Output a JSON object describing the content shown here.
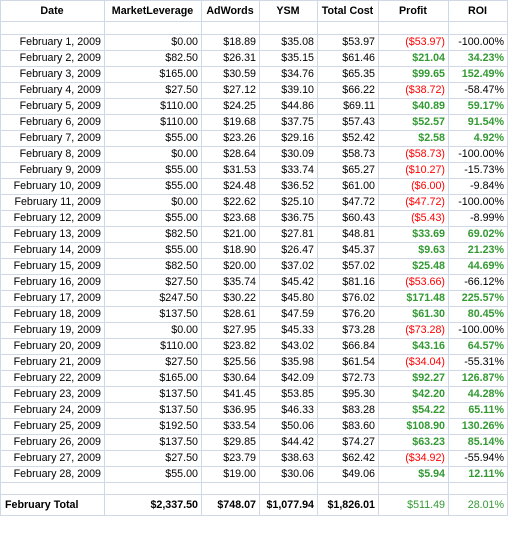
{
  "columns": [
    "Date",
    "MarketLeverage",
    "AdWords",
    "YSM",
    "Total Cost",
    "Profit",
    "ROI"
  ],
  "rows": [
    {
      "date": "February 1, 2009",
      "ml": "$0.00",
      "aw": "$18.89",
      "ysm": "$35.08",
      "tc": "$53.97",
      "profit": "($53.97)",
      "roi": "-100.00%",
      "sign": "neg"
    },
    {
      "date": "February 2, 2009",
      "ml": "$82.50",
      "aw": "$26.31",
      "ysm": "$35.15",
      "tc": "$61.46",
      "profit": "$21.04",
      "roi": "34.23%",
      "sign": "pos"
    },
    {
      "date": "February 3, 2009",
      "ml": "$165.00",
      "aw": "$30.59",
      "ysm": "$34.76",
      "tc": "$65.35",
      "profit": "$99.65",
      "roi": "152.49%",
      "sign": "pos"
    },
    {
      "date": "February 4, 2009",
      "ml": "$27.50",
      "aw": "$27.12",
      "ysm": "$39.10",
      "tc": "$66.22",
      "profit": "($38.72)",
      "roi": "-58.47%",
      "sign": "neg"
    },
    {
      "date": "February 5, 2009",
      "ml": "$110.00",
      "aw": "$24.25",
      "ysm": "$44.86",
      "tc": "$69.11",
      "profit": "$40.89",
      "roi": "59.17%",
      "sign": "pos"
    },
    {
      "date": "February 6, 2009",
      "ml": "$110.00",
      "aw": "$19.68",
      "ysm": "$37.75",
      "tc": "$57.43",
      "profit": "$52.57",
      "roi": "91.54%",
      "sign": "pos"
    },
    {
      "date": "February 7, 2009",
      "ml": "$55.00",
      "aw": "$23.26",
      "ysm": "$29.16",
      "tc": "$52.42",
      "profit": "$2.58",
      "roi": "4.92%",
      "sign": "pos"
    },
    {
      "date": "February 8, 2009",
      "ml": "$0.00",
      "aw": "$28.64",
      "ysm": "$30.09",
      "tc": "$58.73",
      "profit": "($58.73)",
      "roi": "-100.00%",
      "sign": "neg"
    },
    {
      "date": "February 9, 2009",
      "ml": "$55.00",
      "aw": "$31.53",
      "ysm": "$33.74",
      "tc": "$65.27",
      "profit": "($10.27)",
      "roi": "-15.73%",
      "sign": "neg"
    },
    {
      "date": "February 10, 2009",
      "ml": "$55.00",
      "aw": "$24.48",
      "ysm": "$36.52",
      "tc": "$61.00",
      "profit": "($6.00)",
      "roi": "-9.84%",
      "sign": "neg"
    },
    {
      "date": "February 11, 2009",
      "ml": "$0.00",
      "aw": "$22.62",
      "ysm": "$25.10",
      "tc": "$47.72",
      "profit": "($47.72)",
      "roi": "-100.00%",
      "sign": "neg"
    },
    {
      "date": "February 12, 2009",
      "ml": "$55.00",
      "aw": "$23.68",
      "ysm": "$36.75",
      "tc": "$60.43",
      "profit": "($5.43)",
      "roi": "-8.99%",
      "sign": "neg"
    },
    {
      "date": "February 13, 2009",
      "ml": "$82.50",
      "aw": "$21.00",
      "ysm": "$27.81",
      "tc": "$48.81",
      "profit": "$33.69",
      "roi": "69.02%",
      "sign": "pos"
    },
    {
      "date": "February 14, 2009",
      "ml": "$55.00",
      "aw": "$18.90",
      "ysm": "$26.47",
      "tc": "$45.37",
      "profit": "$9.63",
      "roi": "21.23%",
      "sign": "pos"
    },
    {
      "date": "February 15, 2009",
      "ml": "$82.50",
      "aw": "$20.00",
      "ysm": "$37.02",
      "tc": "$57.02",
      "profit": "$25.48",
      "roi": "44.69%",
      "sign": "pos"
    },
    {
      "date": "February 16, 2009",
      "ml": "$27.50",
      "aw": "$35.74",
      "ysm": "$45.42",
      "tc": "$81.16",
      "profit": "($53.66)",
      "roi": "-66.12%",
      "sign": "neg"
    },
    {
      "date": "February 17, 2009",
      "ml": "$247.50",
      "aw": "$30.22",
      "ysm": "$45.80",
      "tc": "$76.02",
      "profit": "$171.48",
      "roi": "225.57%",
      "sign": "pos"
    },
    {
      "date": "February 18, 2009",
      "ml": "$137.50",
      "aw": "$28.61",
      "ysm": "$47.59",
      "tc": "$76.20",
      "profit": "$61.30",
      "roi": "80.45%",
      "sign": "pos"
    },
    {
      "date": "February 19, 2009",
      "ml": "$0.00",
      "aw": "$27.95",
      "ysm": "$45.33",
      "tc": "$73.28",
      "profit": "($73.28)",
      "roi": "-100.00%",
      "sign": "neg"
    },
    {
      "date": "February 20, 2009",
      "ml": "$110.00",
      "aw": "$23.82",
      "ysm": "$43.02",
      "tc": "$66.84",
      "profit": "$43.16",
      "roi": "64.57%",
      "sign": "pos"
    },
    {
      "date": "February 21, 2009",
      "ml": "$27.50",
      "aw": "$25.56",
      "ysm": "$35.98",
      "tc": "$61.54",
      "profit": "($34.04)",
      "roi": "-55.31%",
      "sign": "neg"
    },
    {
      "date": "February 22, 2009",
      "ml": "$165.00",
      "aw": "$30.64",
      "ysm": "$42.09",
      "tc": "$72.73",
      "profit": "$92.27",
      "roi": "126.87%",
      "sign": "pos"
    },
    {
      "date": "February 23, 2009",
      "ml": "$137.50",
      "aw": "$41.45",
      "ysm": "$53.85",
      "tc": "$95.30",
      "profit": "$42.20",
      "roi": "44.28%",
      "sign": "pos"
    },
    {
      "date": "February 24, 2009",
      "ml": "$137.50",
      "aw": "$36.95",
      "ysm": "$46.33",
      "tc": "$83.28",
      "profit": "$54.22",
      "roi": "65.11%",
      "sign": "pos"
    },
    {
      "date": "February 25, 2009",
      "ml": "$192.50",
      "aw": "$33.54",
      "ysm": "$50.06",
      "tc": "$83.60",
      "profit": "$108.90",
      "roi": "130.26%",
      "sign": "pos"
    },
    {
      "date": "February 26, 2009",
      "ml": "$137.50",
      "aw": "$29.85",
      "ysm": "$44.42",
      "tc": "$74.27",
      "profit": "$63.23",
      "roi": "85.14%",
      "sign": "pos"
    },
    {
      "date": "February 27, 2009",
      "ml": "$27.50",
      "aw": "$23.79",
      "ysm": "$38.63",
      "tc": "$62.42",
      "profit": "($34.92)",
      "roi": "-55.94%",
      "sign": "neg"
    },
    {
      "date": "February 28, 2009",
      "ml": "$55.00",
      "aw": "$19.00",
      "ysm": "$30.06",
      "tc": "$49.06",
      "profit": "$5.94",
      "roi": "12.11%",
      "sign": "pos"
    }
  ],
  "total": {
    "label": "February Total",
    "ml": "$2,337.50",
    "aw": "$748.07",
    "ysm": "$1,077.94",
    "tc": "$1,826.01",
    "profit": "$511.49",
    "roi": "28.01%"
  },
  "colors": {
    "positive": "#339933",
    "negative": "#ff0000",
    "gridline": "#d0d7e5"
  }
}
